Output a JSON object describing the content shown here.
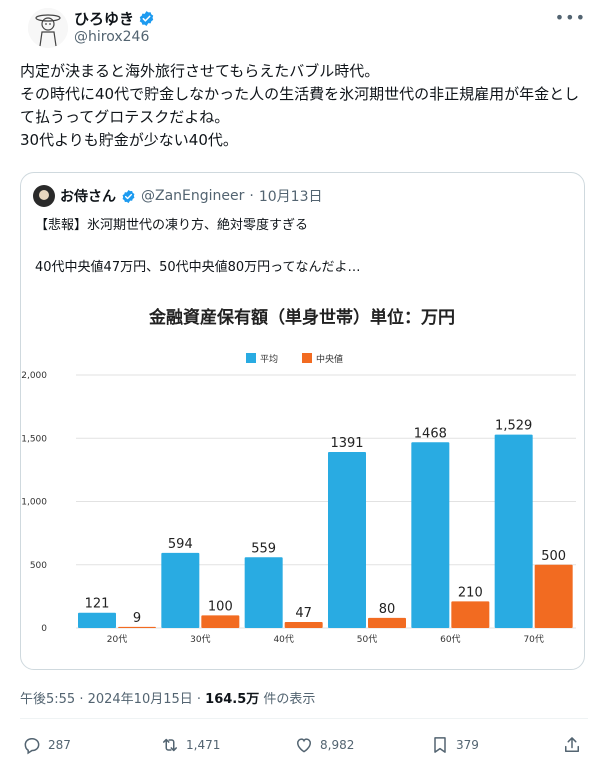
{
  "user": {
    "display_name": "ひろゆき",
    "handle": "@hirox246"
  },
  "tweet": {
    "text": "内定が決まると海外旅行させてもらえたバブル時代。\nその時代に40代で貯金しなかった人の生活費を氷河期世代の非正規雇用が年金として払うってグロテスクだよね。\n30代よりも貯金が少ない40代。"
  },
  "quote": {
    "display_name": "お侍さん",
    "handle": "@ZanEngineer",
    "date": "10月13日",
    "text": "【悲報】氷河期世代の凍り方、絶対零度すぎる\n\n40代中央値47万円、50代中央値80万円ってなんだよ…"
  },
  "chart_data": {
    "type": "bar",
    "title": "金融資産保有額（単身世帯）単位：万円",
    "categories": [
      "20代",
      "30代",
      "40代",
      "50代",
      "60代",
      "70代"
    ],
    "series": [
      {
        "name": "平均",
        "values": [
          121,
          594,
          559,
          1391,
          1468,
          1529
        ],
        "labels": [
          "121",
          "594",
          "559",
          "1391",
          "1468",
          "1,529"
        ],
        "color": "#29abe2"
      },
      {
        "name": "中央値",
        "values": [
          9,
          100,
          47,
          80,
          210,
          500
        ],
        "labels": [
          "9",
          "100",
          "47",
          "80",
          "210",
          "500"
        ],
        "color": "#f26b21"
      }
    ],
    "ylim": [
      0,
      2000
    ],
    "yticks": [
      0,
      500,
      1000,
      1500,
      2000
    ],
    "ytick_labels": [
      "0",
      "500",
      "1,000",
      "1,500",
      "2,000"
    ],
    "grid": true,
    "legend_position": "top-center"
  },
  "meta": {
    "time": "午後5:55 · 2024年10月15日 · ",
    "views": "164.5万",
    "views_suffix": " 件の表示"
  },
  "actions": {
    "replies": "287",
    "reposts": "1,471",
    "likes": "8,982",
    "bookmarks": "379"
  },
  "colors": {
    "verified": "#1d9bf0",
    "avg_bar": "#29abe2",
    "median_bar": "#f26b21"
  }
}
